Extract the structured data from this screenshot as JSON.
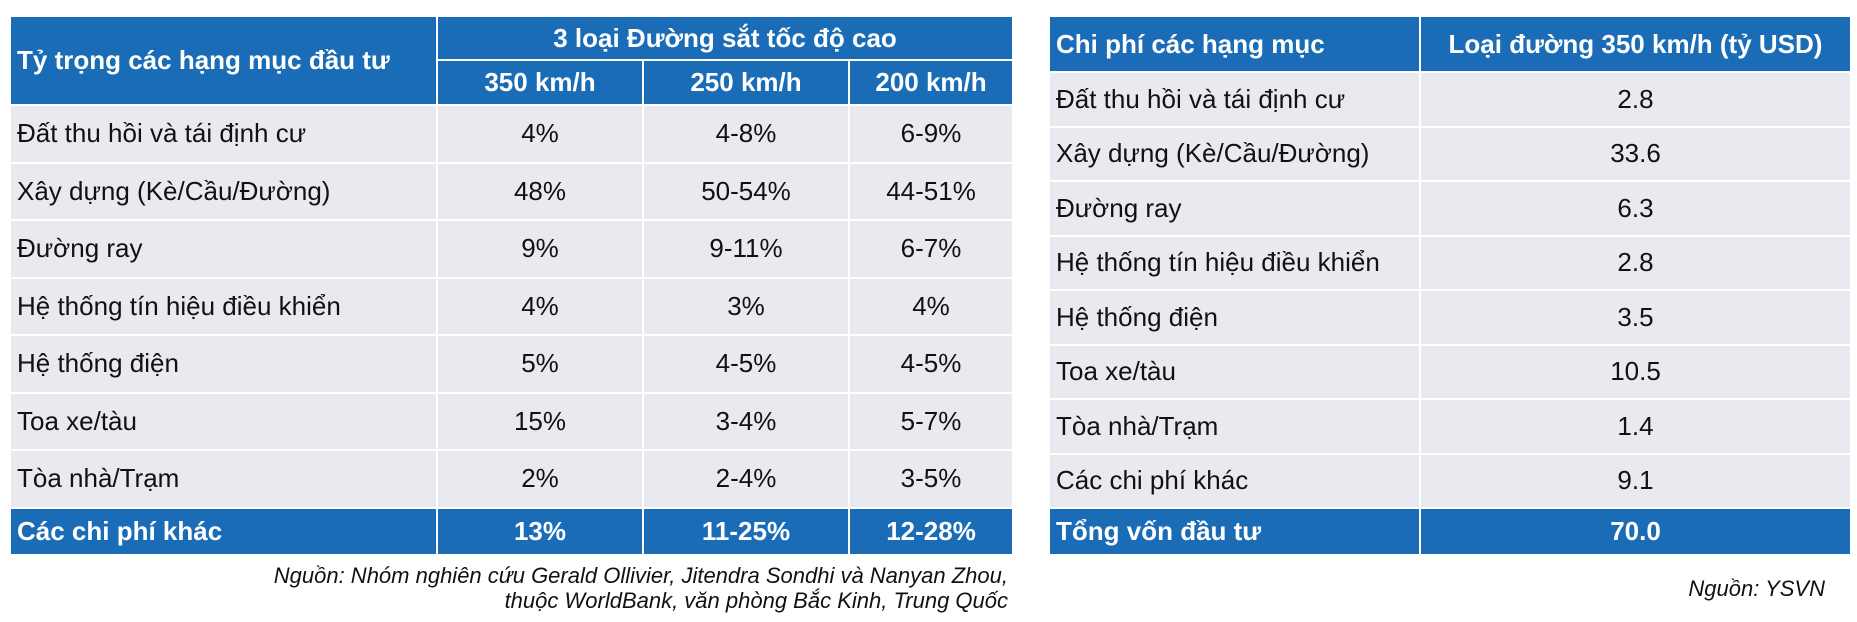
{
  "left_table": {
    "header": {
      "row_label": "Tỷ trọng các hạng mục đầu tư",
      "group": "3 loại Đường sắt tốc độ cao",
      "columns": [
        "350 km/h",
        "250 km/h",
        "200 km/h"
      ]
    },
    "rows": [
      [
        "Đất thu hồi và tái định cư",
        "4%",
        "4-8%",
        "6-9%"
      ],
      [
        "Xây dựng (Kè/Cầu/Đường)",
        "48%",
        "50-54%",
        "44-51%"
      ],
      [
        "Đường ray",
        "9%",
        "9-11%",
        "6-7%"
      ],
      [
        "Hệ thống tín hiệu điều khiển",
        "4%",
        "3%",
        "4%"
      ],
      [
        "Hệ thống điện",
        "5%",
        "4-5%",
        "4-5%"
      ],
      [
        "Toa xe/tàu",
        "15%",
        "3-4%",
        "5-7%"
      ],
      [
        "Tòa nhà/Trạm",
        "2%",
        "2-4%",
        "3-5%"
      ]
    ],
    "total": [
      "Các chi phí khác",
      "13%",
      "11-25%",
      "12-28%"
    ],
    "source": [
      "Nguồn: Nhóm nghiên cứu Gerald Ollivier, Jitendra Sondhi và Nanyan Zhou,",
      "thuộc WorldBank, văn phòng Bắc Kinh, Trung Quốc"
    ]
  },
  "right_table": {
    "header": [
      "Chi phí các hạng mục",
      "Loại đường 350 km/h (tỷ USD)"
    ],
    "rows": [
      [
        "Đất thu hồi và tái định cư",
        "2.8"
      ],
      [
        "Xây dựng (Kè/Cầu/Đường)",
        "33.6"
      ],
      [
        "Đường ray",
        "6.3"
      ],
      [
        "Hệ thống tín hiệu điều khiển",
        "2.8"
      ],
      [
        "Hệ thống điện",
        "3.5"
      ],
      [
        "Toa xe/tàu",
        "10.5"
      ],
      [
        "Tòa nhà/Trạm",
        "1.4"
      ],
      [
        "Các chi phí khác",
        "9.1"
      ]
    ],
    "total": [
      "Tổng vốn đầu tư",
      "70.0"
    ],
    "source": "Nguồn: YSVN"
  }
}
